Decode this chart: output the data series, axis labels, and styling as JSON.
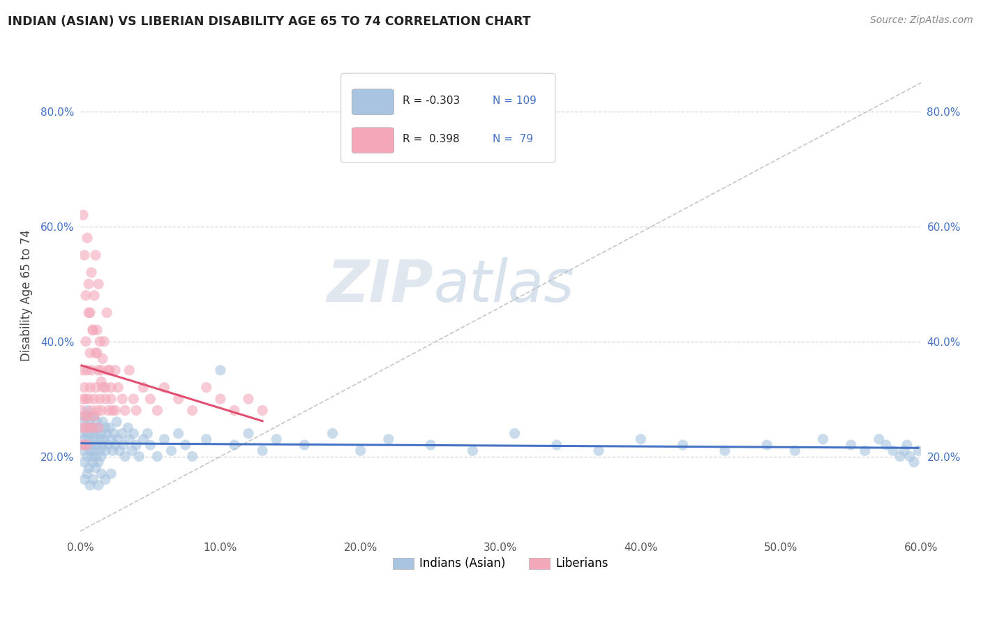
{
  "title": "INDIAN (ASIAN) VS LIBERIAN DISABILITY AGE 65 TO 74 CORRELATION CHART",
  "source_text": "Source: ZipAtlas.com",
  "ylabel": "Disability Age 65 to 74",
  "x_tick_labels": [
    "0.0%",
    "10.0%",
    "20.0%",
    "30.0%",
    "40.0%",
    "50.0%",
    "60.0%"
  ],
  "y_tick_labels": [
    "20.0%",
    "40.0%",
    "60.0%",
    "80.0%"
  ],
  "xlim": [
    0.0,
    0.6
  ],
  "ylim": [
    0.06,
    0.9
  ],
  "x_ticks": [
    0.0,
    0.1,
    0.2,
    0.3,
    0.4,
    0.5,
    0.6
  ],
  "y_ticks": [
    0.2,
    0.4,
    0.6,
    0.8
  ],
  "color_indian": "#a8c4e0",
  "color_liberian": "#f4a7b9",
  "color_indian_line": "#4472c4",
  "color_liberian_line": "#e05070",
  "watermark_zip": "ZIP",
  "watermark_atlas": "atlas",
  "background_color": "#ffffff",
  "grid_color": "#cccccc",
  "indian_points_x": [
    0.001,
    0.002,
    0.002,
    0.003,
    0.003,
    0.003,
    0.004,
    0.004,
    0.005,
    0.005,
    0.005,
    0.006,
    0.006,
    0.006,
    0.007,
    0.007,
    0.007,
    0.008,
    0.008,
    0.008,
    0.009,
    0.009,
    0.01,
    0.01,
    0.01,
    0.011,
    0.011,
    0.012,
    0.012,
    0.013,
    0.013,
    0.014,
    0.014,
    0.015,
    0.015,
    0.016,
    0.016,
    0.017,
    0.018,
    0.018,
    0.019,
    0.02,
    0.021,
    0.022,
    0.023,
    0.024,
    0.025,
    0.026,
    0.027,
    0.028,
    0.03,
    0.031,
    0.032,
    0.034,
    0.035,
    0.037,
    0.038,
    0.04,
    0.042,
    0.045,
    0.048,
    0.05,
    0.055,
    0.06,
    0.065,
    0.07,
    0.075,
    0.08,
    0.09,
    0.1,
    0.11,
    0.12,
    0.13,
    0.14,
    0.16,
    0.18,
    0.2,
    0.22,
    0.25,
    0.28,
    0.31,
    0.34,
    0.37,
    0.4,
    0.43,
    0.46,
    0.49,
    0.51,
    0.53,
    0.55,
    0.56,
    0.57,
    0.575,
    0.58,
    0.585,
    0.588,
    0.59,
    0.592,
    0.595,
    0.598,
    0.003,
    0.005,
    0.007,
    0.009,
    0.011,
    0.013,
    0.015,
    0.018,
    0.022
  ],
  "indian_points_y": [
    0.24,
    0.26,
    0.21,
    0.23,
    0.27,
    0.19,
    0.25,
    0.22,
    0.24,
    0.28,
    0.2,
    0.26,
    0.23,
    0.18,
    0.25,
    0.21,
    0.27,
    0.24,
    0.2,
    0.22,
    0.25,
    0.19,
    0.23,
    0.27,
    0.21,
    0.24,
    0.2,
    0.26,
    0.22,
    0.25,
    0.19,
    0.23,
    0.21,
    0.24,
    0.2,
    0.22,
    0.26,
    0.23,
    0.25,
    0.21,
    0.24,
    0.22,
    0.25,
    0.23,
    0.21,
    0.24,
    0.22,
    0.26,
    0.23,
    0.21,
    0.24,
    0.22,
    0.2,
    0.25,
    0.23,
    0.21,
    0.24,
    0.22,
    0.2,
    0.23,
    0.24,
    0.22,
    0.2,
    0.23,
    0.21,
    0.24,
    0.22,
    0.2,
    0.23,
    0.35,
    0.22,
    0.24,
    0.21,
    0.23,
    0.22,
    0.24,
    0.21,
    0.23,
    0.22,
    0.21,
    0.24,
    0.22,
    0.21,
    0.23,
    0.22,
    0.21,
    0.22,
    0.21,
    0.23,
    0.22,
    0.21,
    0.23,
    0.22,
    0.21,
    0.2,
    0.21,
    0.22,
    0.2,
    0.19,
    0.21,
    0.16,
    0.17,
    0.15,
    0.16,
    0.18,
    0.15,
    0.17,
    0.16,
    0.17
  ],
  "liberian_points_x": [
    0.001,
    0.001,
    0.002,
    0.002,
    0.002,
    0.003,
    0.003,
    0.003,
    0.004,
    0.004,
    0.004,
    0.005,
    0.005,
    0.005,
    0.006,
    0.006,
    0.007,
    0.007,
    0.007,
    0.008,
    0.008,
    0.009,
    0.009,
    0.01,
    0.01,
    0.011,
    0.011,
    0.012,
    0.012,
    0.013,
    0.013,
    0.014,
    0.015,
    0.015,
    0.016,
    0.017,
    0.018,
    0.019,
    0.02,
    0.021,
    0.022,
    0.023,
    0.025,
    0.027,
    0.03,
    0.032,
    0.035,
    0.038,
    0.04,
    0.045,
    0.05,
    0.055,
    0.06,
    0.07,
    0.08,
    0.09,
    0.1,
    0.11,
    0.12,
    0.13,
    0.002,
    0.003,
    0.004,
    0.005,
    0.006,
    0.007,
    0.008,
    0.009,
    0.01,
    0.011,
    0.012,
    0.013,
    0.014,
    0.015,
    0.016,
    0.018,
    0.02,
    0.022,
    0.025
  ],
  "liberian_points_y": [
    0.28,
    0.22,
    0.3,
    0.25,
    0.35,
    0.27,
    0.32,
    0.22,
    0.4,
    0.25,
    0.3,
    0.27,
    0.35,
    0.22,
    0.45,
    0.3,
    0.38,
    0.25,
    0.32,
    0.35,
    0.28,
    0.42,
    0.25,
    0.3,
    0.27,
    0.55,
    0.32,
    0.28,
    0.38,
    0.25,
    0.5,
    0.3,
    0.35,
    0.28,
    0.32,
    0.4,
    0.3,
    0.45,
    0.28,
    0.35,
    0.32,
    0.28,
    0.35,
    0.32,
    0.3,
    0.28,
    0.35,
    0.3,
    0.28,
    0.32,
    0.3,
    0.28,
    0.32,
    0.3,
    0.28,
    0.32,
    0.3,
    0.28,
    0.3,
    0.28,
    0.62,
    0.55,
    0.48,
    0.58,
    0.5,
    0.45,
    0.52,
    0.42,
    0.48,
    0.38,
    0.42,
    0.35,
    0.4,
    0.33,
    0.37,
    0.32,
    0.35,
    0.3,
    0.28
  ],
  "legend_items": [
    {
      "color": "#a8c4e0",
      "r_val": "-0.303",
      "n_val": "109"
    },
    {
      "color": "#f4a7b9",
      "r_val": " 0.398",
      "n_val": " 79"
    }
  ],
  "bottom_legend": [
    {
      "color": "#a8c4e0",
      "label": "Indians (Asian)"
    },
    {
      "color": "#f4a7b9",
      "label": "Liberians"
    }
  ]
}
